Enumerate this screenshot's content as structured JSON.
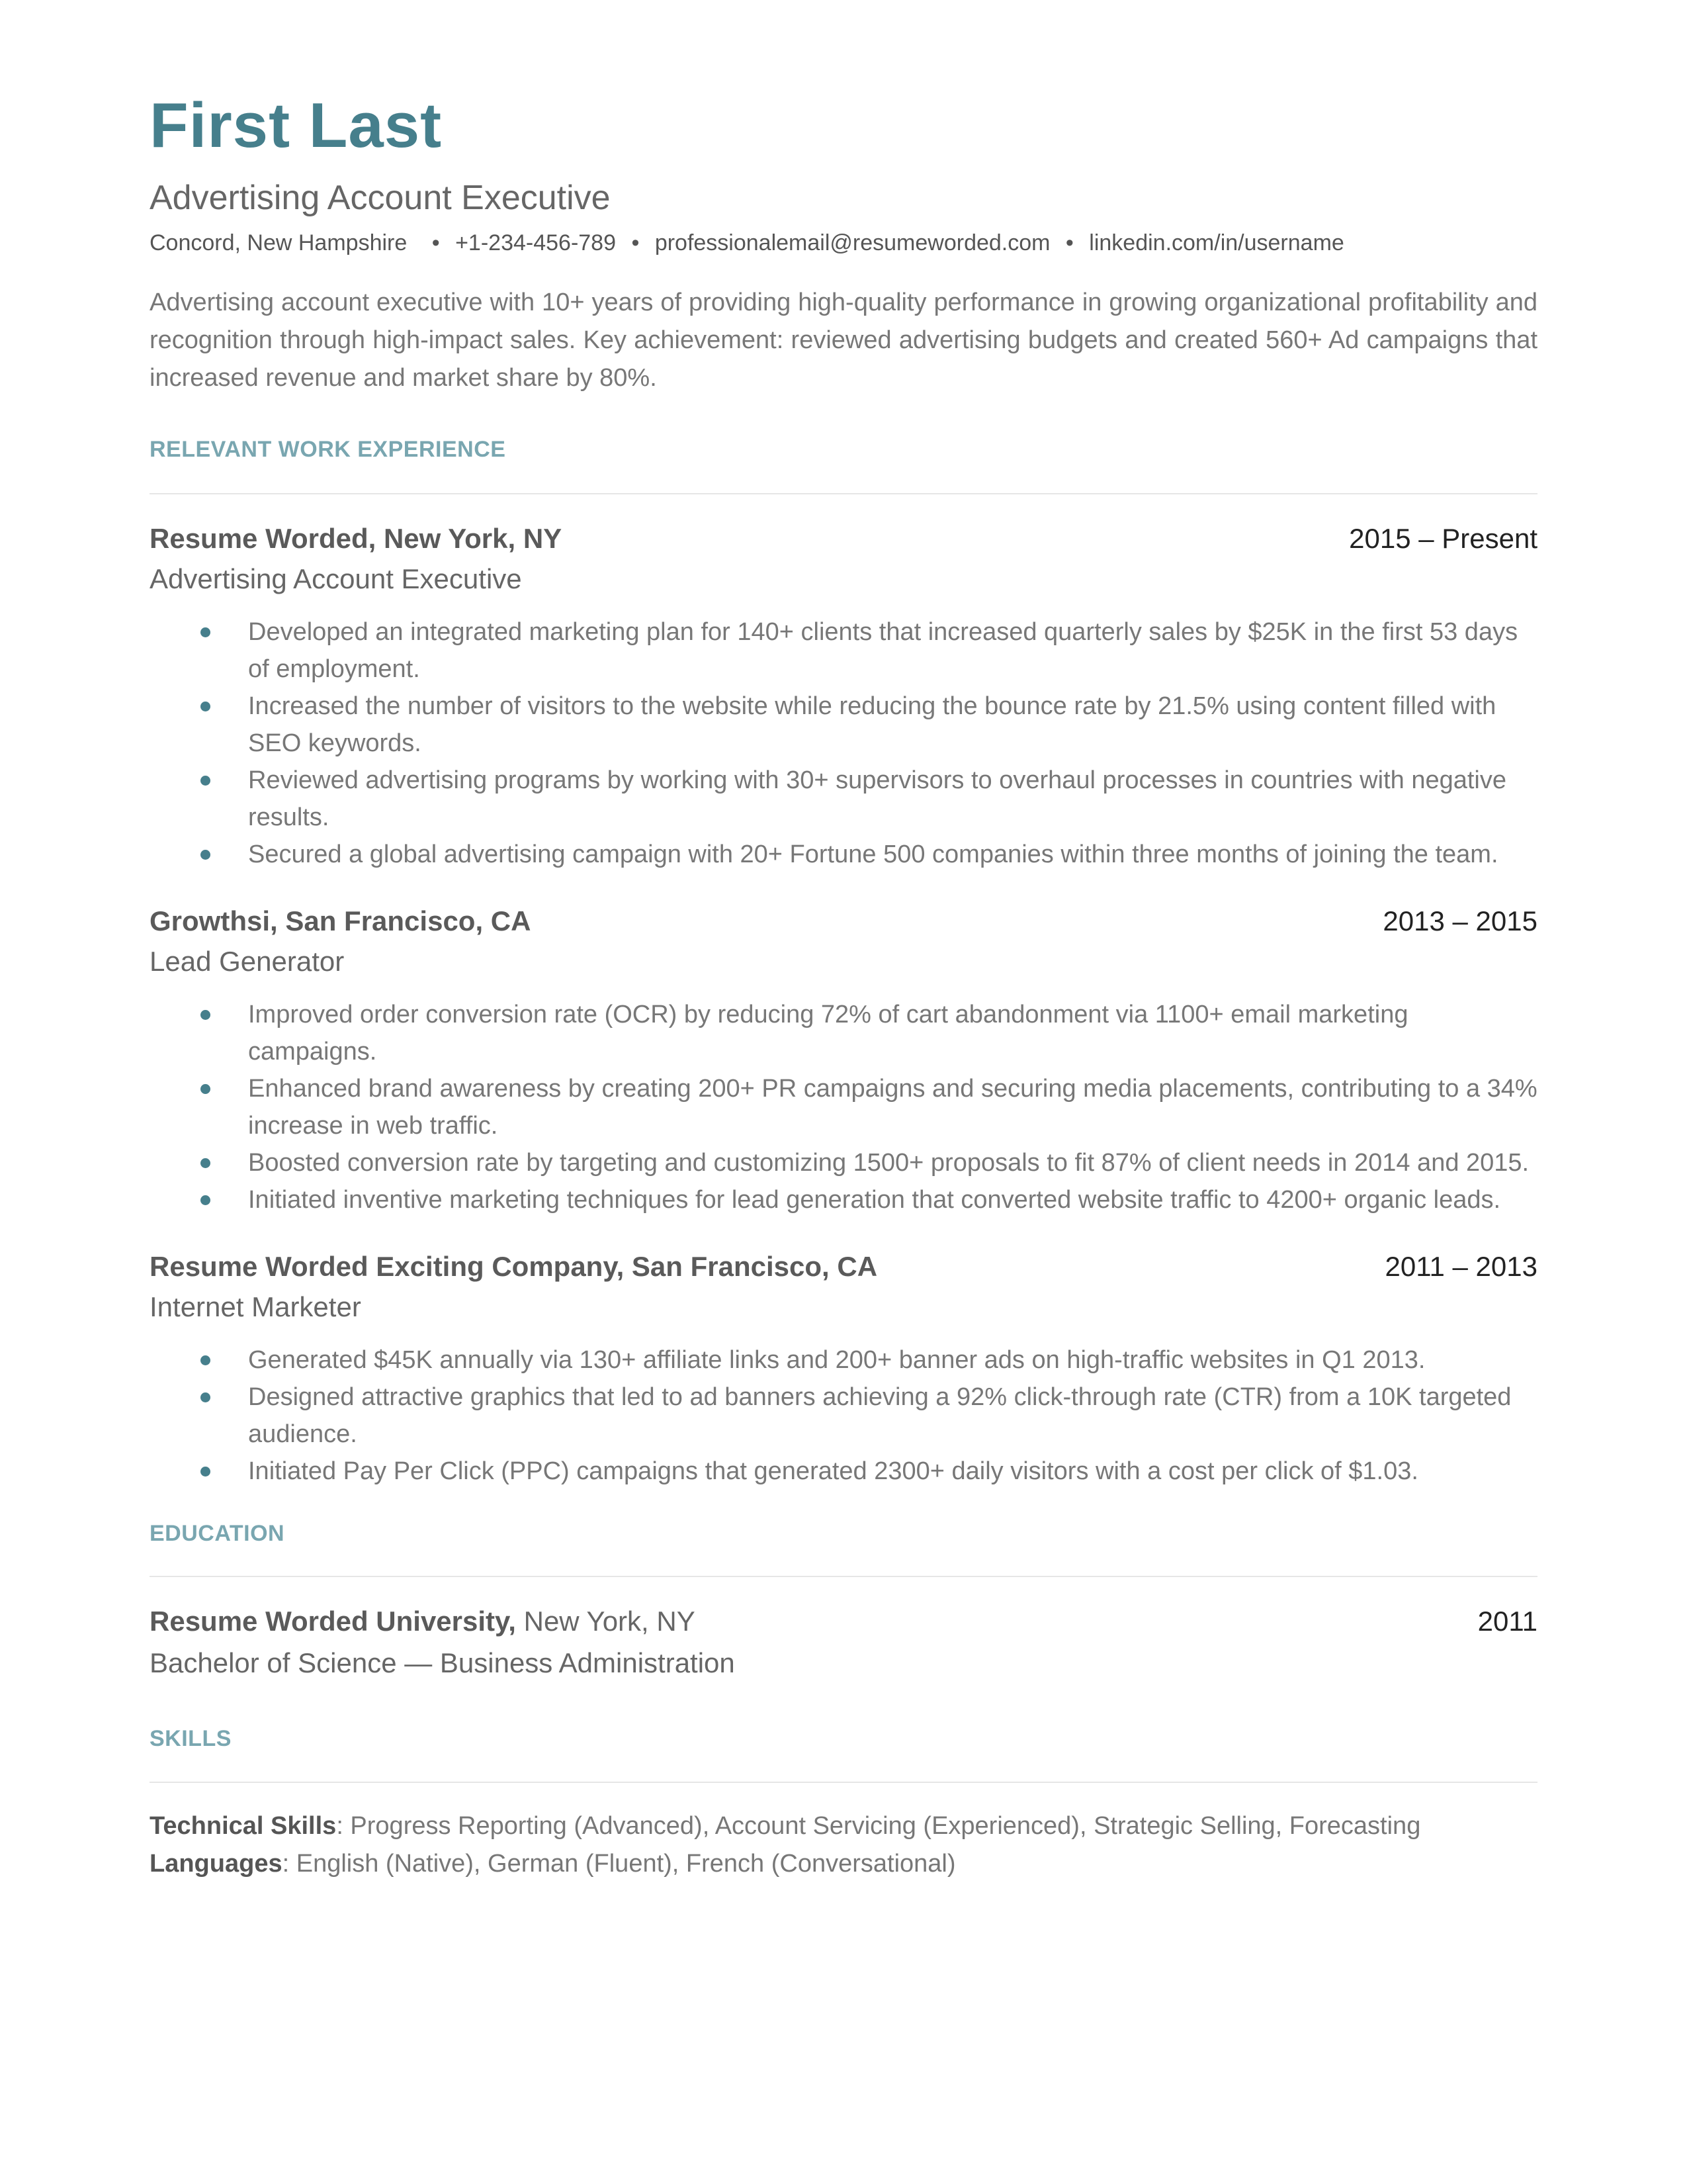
{
  "header": {
    "name": "First Last",
    "title": "Advertising Account Executive",
    "contact": [
      "Concord, New Hampshire",
      "+1-234-456-789",
      "professionalemail@resumeworded.com",
      "linkedin.com/in/username"
    ],
    "separator": "•"
  },
  "summary": "Advertising account executive with 10+ years of providing high-quality performance in growing organizational profitability and recognition through high-impact sales. Key achievement: reviewed advertising budgets and created 560+ Ad campaigns that increased revenue and market share by 80%.",
  "colors": {
    "accent": "#467f8c",
    "section": "#79a6b0",
    "text": "#666666"
  },
  "experience": {
    "heading": "RELEVANT WORK EXPERIENCE",
    "jobs": [
      {
        "company": "Resume Worded, New York, NY",
        "dates": "2015 – Present",
        "role": "Advertising Account Executive",
        "bullets": [
          "Developed an integrated marketing plan for 140+ clients that increased quarterly sales by $25K in the first 53 days of employment.",
          "Increased the number of visitors to the website while reducing the bounce rate by 21.5% using content filled with SEO keywords.",
          "Reviewed advertising programs by working with 30+ supervisors to overhaul processes in countries with negative results.",
          "Secured a global advertising campaign with 20+ Fortune 500 companies within three months of joining the team."
        ]
      },
      {
        "company": "Growthsi, San Francisco, CA",
        "dates": "2013 – 2015",
        "role": "Lead Generator",
        "bullets": [
          "Improved order conversion rate (OCR) by reducing 72% of cart abandonment via 1100+ email marketing campaigns.",
          "Enhanced brand awareness by creating 200+ PR campaigns and securing media placements, contributing to a 34% increase in web traffic.",
          "Boosted conversion rate by targeting and customizing 1500+ proposals to fit 87% of client needs in 2014 and 2015.",
          "Initiated inventive marketing techniques for lead generation that converted website traffic to 4200+ organic leads."
        ]
      },
      {
        "company": "Resume Worded Exciting Company, San Francisco, CA",
        "dates": "2011 – 2013",
        "role": "Internet Marketer",
        "bullets": [
          "Generated $45K annually via 130+ affiliate links and 200+ banner ads on high-traffic websites in Q1 2013.",
          "Designed attractive graphics that led to ad banners achieving a 92% click-through rate (CTR) from a 10K targeted audience.",
          "Initiated Pay Per Click (PPC) campaigns that generated 2300+ daily visitors with a cost per click of $1.03."
        ]
      }
    ]
  },
  "education": {
    "heading": "EDUCATION",
    "school": "Resume Worded University,",
    "location": " New York, NY",
    "year": "2011",
    "degree": "Bachelor of Science — Business Administration"
  },
  "skills": {
    "heading": "SKILLS",
    "technical_label": "Technical Skills",
    "technical": ": Progress Reporting (Advanced), Account Servicing (Experienced), Strategic Selling, Forecasting",
    "languages_label": "Languages",
    "languages": ": English (Native), German (Fluent), French (Conversational)"
  }
}
